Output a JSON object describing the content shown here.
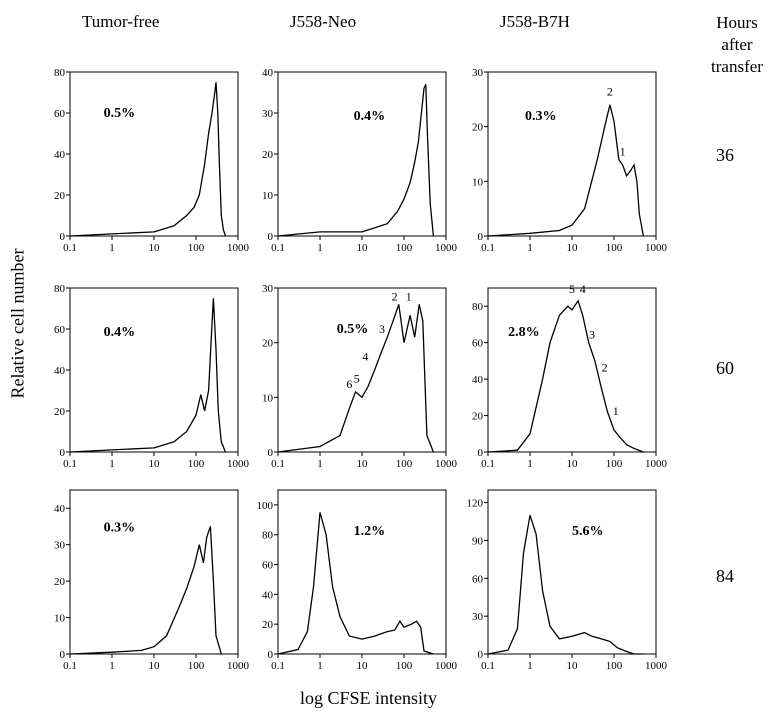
{
  "columns": [
    "Tumor-free",
    "J558-Neo",
    "J558-B7H"
  ],
  "hours_header": [
    "Hours after",
    "transfer"
  ],
  "row_labels": [
    "36",
    "60",
    "84"
  ],
  "y_axis_label": "Relative cell number",
  "x_axis_label": "log CFSE intensity",
  "chart_data": [
    {
      "type": "area",
      "column": "Tumor-free",
      "hours": "36",
      "pct": "0.5%",
      "x_ticks": [
        "0.1",
        "1",
        "10",
        "100",
        "1000"
      ],
      "y_ticks": [
        "0",
        "20",
        "40",
        "60",
        "80"
      ],
      "ylim": [
        0,
        80
      ],
      "x": [
        0.1,
        1,
        10,
        30,
        60,
        90,
        120,
        160,
        200,
        240,
        280,
        300,
        330,
        360,
        400,
        450,
        500
      ],
      "y": [
        0,
        1,
        2,
        5,
        10,
        14,
        20,
        35,
        50,
        60,
        70,
        75,
        60,
        35,
        10,
        3,
        0
      ],
      "peak_labels": []
    },
    {
      "type": "area",
      "column": "J558-Neo",
      "hours": "36",
      "pct": "0.4%",
      "x_ticks": [
        "0.1",
        "1",
        "10",
        "100",
        "1000"
      ],
      "y_ticks": [
        "0",
        "10",
        "20",
        "30",
        "40"
      ],
      "ylim": [
        0,
        40
      ],
      "x": [
        0.1,
        1,
        10,
        40,
        70,
        100,
        140,
        180,
        220,
        260,
        300,
        330,
        360,
        420,
        500
      ],
      "y": [
        0,
        1,
        1,
        3,
        6,
        9,
        13,
        18,
        23,
        30,
        36,
        37,
        25,
        8,
        0
      ],
      "peak_labels": []
    },
    {
      "type": "area",
      "column": "J558-B7H",
      "hours": "36",
      "pct": "0.3%",
      "x_ticks": [
        "0.1",
        "1",
        "10",
        "100",
        "1000"
      ],
      "y_ticks": [
        "0",
        "10",
        "20",
        "30"
      ],
      "ylim": [
        0,
        30
      ],
      "x": [
        0.1,
        1,
        5,
        10,
        20,
        40,
        60,
        80,
        100,
        130,
        160,
        200,
        250,
        300,
        350,
        400,
        500
      ],
      "y": [
        0,
        0.5,
        1,
        2,
        5,
        14,
        20,
        24,
        21,
        14,
        13,
        11,
        12,
        13,
        10,
        4,
        0
      ],
      "peak_labels": [
        {
          "text": "2",
          "x": 80,
          "y": 25
        },
        {
          "text": "1",
          "x": 160,
          "y": 14
        }
      ]
    },
    {
      "type": "area",
      "column": "Tumor-free",
      "hours": "60",
      "pct": "0.4%",
      "x_ticks": [
        "0.1",
        "1",
        "10",
        "100",
        "1000"
      ],
      "y_ticks": [
        "0",
        "20",
        "40",
        "60",
        "80"
      ],
      "ylim": [
        0,
        80
      ],
      "x": [
        0.1,
        1,
        10,
        30,
        60,
        100,
        130,
        160,
        200,
        230,
        260,
        300,
        340,
        400,
        500
      ],
      "y": [
        0,
        1,
        2,
        5,
        10,
        18,
        28,
        20,
        30,
        55,
        75,
        50,
        20,
        5,
        0
      ],
      "peak_labels": []
    },
    {
      "type": "area",
      "column": "J558-Neo",
      "hours": "60",
      "pct": "0.5%",
      "x_ticks": [
        "0.1",
        "1",
        "10",
        "100",
        "1000"
      ],
      "y_ticks": [
        "0",
        "10",
        "20",
        "30"
      ],
      "ylim": [
        0,
        30
      ],
      "x": [
        0.1,
        1,
        3,
        5,
        7,
        10,
        14,
        20,
        28,
        40,
        55,
        75,
        100,
        140,
        180,
        230,
        280,
        350,
        500
      ],
      "y": [
        0,
        1,
        3,
        8,
        11,
        10,
        12,
        15,
        18,
        21,
        24,
        27,
        20,
        25,
        21,
        27,
        24,
        3,
        0
      ],
      "peak_labels": [
        {
          "text": "6",
          "x": 5,
          "y": 11
        },
        {
          "text": "5",
          "x": 7.5,
          "y": 12
        },
        {
          "text": "4",
          "x": 12,
          "y": 16
        },
        {
          "text": "3",
          "x": 30,
          "y": 21
        },
        {
          "text": "2",
          "x": 60,
          "y": 27
        },
        {
          "text": "1",
          "x": 130,
          "y": 27
        }
      ]
    },
    {
      "type": "area",
      "column": "J558-B7H",
      "hours": "60",
      "pct": "2.8%",
      "x_ticks": [
        "0.1",
        "1",
        "10",
        "100",
        "1000"
      ],
      "y_ticks": [
        "0",
        "20",
        "40",
        "60",
        "80"
      ],
      "ylim": [
        0,
        90
      ],
      "x": [
        0.1,
        0.5,
        1,
        2,
        3,
        5,
        8,
        10,
        14,
        18,
        25,
        35,
        50,
        70,
        100,
        140,
        200,
        300,
        500
      ],
      "y": [
        0,
        1,
        10,
        40,
        60,
        75,
        80,
        78,
        83,
        75,
        60,
        50,
        35,
        22,
        12,
        8,
        4,
        2,
        0
      ],
      "peak_labels": [
        {
          "text": "5",
          "x": 10,
          "y": 85
        },
        {
          "text": "4",
          "x": 18,
          "y": 85
        },
        {
          "text": "3",
          "x": 30,
          "y": 60
        },
        {
          "text": "2",
          "x": 60,
          "y": 42
        },
        {
          "text": "1",
          "x": 110,
          "y": 18
        }
      ]
    },
    {
      "type": "area",
      "column": "Tumor-free",
      "hours": "84",
      "pct": "0.3%",
      "x_ticks": [
        "0.1",
        "1",
        "10",
        "100",
        "1000"
      ],
      "y_ticks": [
        "0",
        "10",
        "20",
        "30",
        "40"
      ],
      "ylim": [
        0,
        45
      ],
      "x": [
        0.1,
        1,
        5,
        10,
        20,
        40,
        60,
        90,
        120,
        150,
        180,
        220,
        260,
        300,
        400
      ],
      "y": [
        0,
        0.5,
        1,
        2,
        5,
        13,
        18,
        24,
        30,
        25,
        32,
        35,
        20,
        5,
        0
      ],
      "peak_labels": []
    },
    {
      "type": "area",
      "column": "J558-Neo",
      "hours": "84",
      "pct": "1.2%",
      "x_ticks": [
        "0.1",
        "1",
        "10",
        "100",
        "1000"
      ],
      "y_ticks": [
        "0",
        "20",
        "40",
        "60",
        "80",
        "100"
      ],
      "ylim": [
        0,
        110
      ],
      "x": [
        0.1,
        0.3,
        0.5,
        0.7,
        1,
        1.4,
        2,
        3,
        5,
        10,
        20,
        40,
        60,
        80,
        100,
        150,
        200,
        250,
        300,
        500
      ],
      "y": [
        0,
        3,
        15,
        45,
        95,
        80,
        45,
        25,
        12,
        10,
        12,
        15,
        16,
        22,
        18,
        20,
        22,
        18,
        2,
        0
      ],
      "peak_labels": []
    },
    {
      "type": "area",
      "column": "J558-B7H",
      "hours": "84",
      "pct": "5.6%",
      "x_ticks": [
        "0.1",
        "1",
        "10",
        "100",
        "1000"
      ],
      "y_ticks": [
        "0",
        "30",
        "60",
        "90",
        "120"
      ],
      "ylim": [
        0,
        130
      ],
      "x": [
        0.1,
        0.3,
        0.5,
        0.7,
        1,
        1.4,
        2,
        3,
        5,
        10,
        20,
        30,
        50,
        80,
        120,
        200,
        300,
        500
      ],
      "y": [
        0,
        3,
        20,
        80,
        110,
        95,
        50,
        22,
        12,
        14,
        17,
        14,
        12,
        10,
        5,
        2,
        0,
        0
      ],
      "peak_labels": []
    }
  ]
}
